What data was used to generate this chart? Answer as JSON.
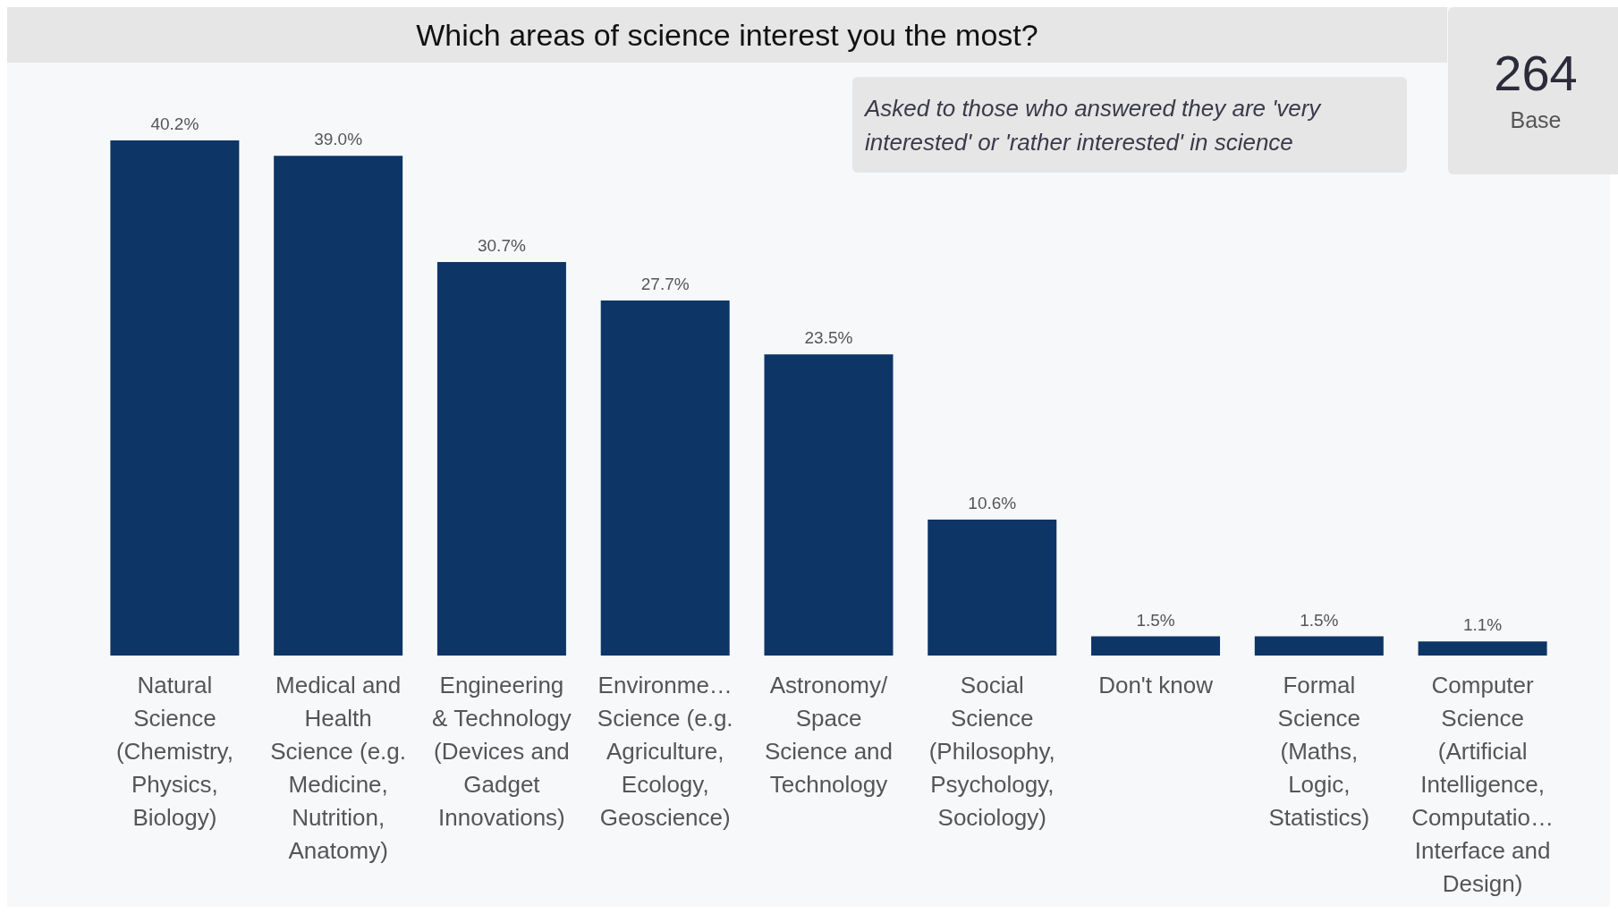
{
  "chart_data": {
    "type": "bar",
    "title": "Which areas of science interest you the most?",
    "categories": [
      "Natural Science (Chemistry, Physics, Biology)",
      "Medical and Health Science (e.g. Medicine, Nutrition, Anatomy)",
      "Engineering & Technology (Devices and Gadget Innovations)",
      "Environme… Science (e.g. Agriculture, Ecology, Geoscience)",
      "Astronomy/ Space Science and Technology",
      "Social Science (Philosophy, Psychology, Sociology)",
      "Don't know",
      "Formal Science (Maths, Logic, Statistics)",
      "Computer Science (Artificial Intelligence, Computatio… Interface and Design)"
    ],
    "values": [
      40.2,
      39.0,
      30.7,
      27.7,
      23.5,
      10.6,
      1.5,
      1.5,
      1.1
    ],
    "value_labels": [
      "40.2%",
      "39.0%",
      "30.7%",
      "27.7%",
      "23.5%",
      "10.6%",
      "1.5%",
      "1.5%",
      "1.1%"
    ],
    "color": "#0d3566",
    "annotations": [
      "Asked to those who answered they are 'very interested' or 'rather interested' in science",
      "264",
      "Base"
    ],
    "grid": false,
    "legend": false
  }
}
